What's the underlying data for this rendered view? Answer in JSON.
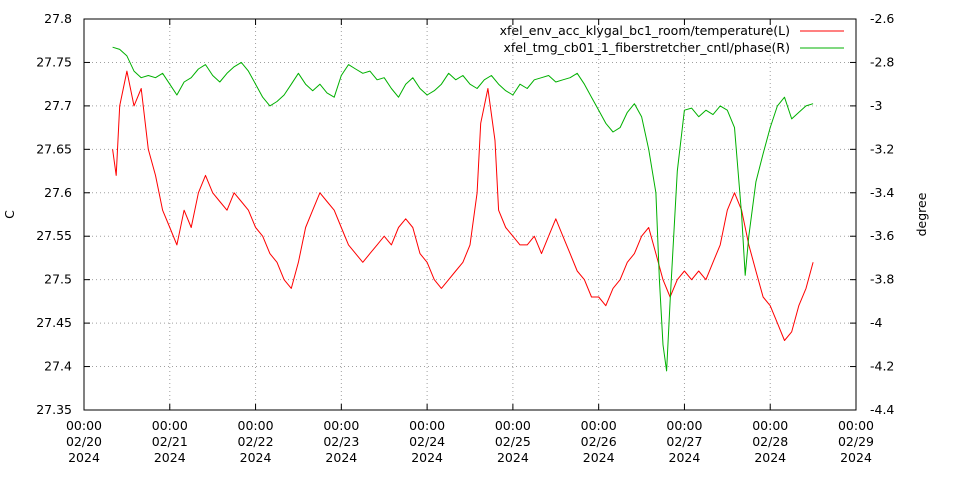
{
  "chart_data": {
    "type": "line",
    "title": "",
    "ylabel_left": "C",
    "ylabel_right": "degree",
    "grid": true,
    "legend_placement": "top-right",
    "x_ticks": [
      {
        "time": "00:00",
        "date": "02/20",
        "year": "2024"
      },
      {
        "time": "00:00",
        "date": "02/21",
        "year": "2024"
      },
      {
        "time": "00:00",
        "date": "02/22",
        "year": "2024"
      },
      {
        "time": "00:00",
        "date": "02/23",
        "year": "2024"
      },
      {
        "time": "00:00",
        "date": "02/24",
        "year": "2024"
      },
      {
        "time": "00:00",
        "date": "02/25",
        "year": "2024"
      },
      {
        "time": "00:00",
        "date": "02/26",
        "year": "2024"
      },
      {
        "time": "00:00",
        "date": "02/27",
        "year": "2024"
      },
      {
        "time": "00:00",
        "date": "02/28",
        "year": "2024"
      },
      {
        "time": "00:00",
        "date": "02/29",
        "year": "2024"
      }
    ],
    "xlim": [
      "2024-02-20 00:00",
      "2024-02-29 00:00"
    ],
    "y_left": {
      "lim": [
        27.35,
        27.8
      ],
      "ticks": [
        "27.35",
        "27.4",
        "27.45",
        "27.5",
        "27.55",
        "27.6",
        "27.65",
        "27.7",
        "27.75",
        "27.8"
      ]
    },
    "y_right": {
      "lim": [
        -4.4,
        -2.6
      ],
      "ticks": [
        "-4.4",
        "-4.2",
        "-4",
        "-3.8",
        "-3.6",
        "-3.4",
        "-3.2",
        "-3",
        "-2.8",
        "-2.6"
      ]
    },
    "series": [
      {
        "name": "xfel_env_acc_klygal_bc1_room/temperature(L)",
        "axis": "left",
        "color": "#ff0000",
        "points": [
          [
            "2024-02-20 08:00",
            27.65
          ],
          [
            "2024-02-20 09:00",
            27.62
          ],
          [
            "2024-02-20 10:00",
            27.7
          ],
          [
            "2024-02-20 12:00",
            27.74
          ],
          [
            "2024-02-20 14:00",
            27.7
          ],
          [
            "2024-02-20 16:00",
            27.72
          ],
          [
            "2024-02-20 18:00",
            27.65
          ],
          [
            "2024-02-20 20:00",
            27.62
          ],
          [
            "2024-02-20 22:00",
            27.58
          ],
          [
            "2024-02-21 00:00",
            27.56
          ],
          [
            "2024-02-21 02:00",
            27.54
          ],
          [
            "2024-02-21 04:00",
            27.58
          ],
          [
            "2024-02-21 06:00",
            27.56
          ],
          [
            "2024-02-21 08:00",
            27.6
          ],
          [
            "2024-02-21 10:00",
            27.62
          ],
          [
            "2024-02-21 12:00",
            27.6
          ],
          [
            "2024-02-21 14:00",
            27.59
          ],
          [
            "2024-02-21 16:00",
            27.58
          ],
          [
            "2024-02-21 18:00",
            27.6
          ],
          [
            "2024-02-21 20:00",
            27.59
          ],
          [
            "2024-02-21 22:00",
            27.58
          ],
          [
            "2024-02-22 00:00",
            27.56
          ],
          [
            "2024-02-22 02:00",
            27.55
          ],
          [
            "2024-02-22 04:00",
            27.53
          ],
          [
            "2024-02-22 06:00",
            27.52
          ],
          [
            "2024-02-22 08:00",
            27.5
          ],
          [
            "2024-02-22 10:00",
            27.49
          ],
          [
            "2024-02-22 12:00",
            27.52
          ],
          [
            "2024-02-22 14:00",
            27.56
          ],
          [
            "2024-02-22 16:00",
            27.58
          ],
          [
            "2024-02-22 18:00",
            27.6
          ],
          [
            "2024-02-22 20:00",
            27.59
          ],
          [
            "2024-02-22 22:00",
            27.58
          ],
          [
            "2024-02-23 00:00",
            27.56
          ],
          [
            "2024-02-23 02:00",
            27.54
          ],
          [
            "2024-02-23 04:00",
            27.53
          ],
          [
            "2024-02-23 06:00",
            27.52
          ],
          [
            "2024-02-23 08:00",
            27.53
          ],
          [
            "2024-02-23 10:00",
            27.54
          ],
          [
            "2024-02-23 12:00",
            27.55
          ],
          [
            "2024-02-23 14:00",
            27.54
          ],
          [
            "2024-02-23 16:00",
            27.56
          ],
          [
            "2024-02-23 18:00",
            27.57
          ],
          [
            "2024-02-23 20:00",
            27.56
          ],
          [
            "2024-02-23 22:00",
            27.53
          ],
          [
            "2024-02-24 00:00",
            27.52
          ],
          [
            "2024-02-24 02:00",
            27.5
          ],
          [
            "2024-02-24 04:00",
            27.49
          ],
          [
            "2024-02-24 06:00",
            27.5
          ],
          [
            "2024-02-24 08:00",
            27.51
          ],
          [
            "2024-02-24 10:00",
            27.52
          ],
          [
            "2024-02-24 12:00",
            27.54
          ],
          [
            "2024-02-24 14:00",
            27.6
          ],
          [
            "2024-02-24 15:00",
            27.68
          ],
          [
            "2024-02-24 17:00",
            27.72
          ],
          [
            "2024-02-24 19:00",
            27.66
          ],
          [
            "2024-02-24 20:00",
            27.58
          ],
          [
            "2024-02-24 22:00",
            27.56
          ],
          [
            "2024-02-25 00:00",
            27.55
          ],
          [
            "2024-02-25 02:00",
            27.54
          ],
          [
            "2024-02-25 04:00",
            27.54
          ],
          [
            "2024-02-25 06:00",
            27.55
          ],
          [
            "2024-02-25 08:00",
            27.53
          ],
          [
            "2024-02-25 10:00",
            27.55
          ],
          [
            "2024-02-25 12:00",
            27.57
          ],
          [
            "2024-02-25 14:00",
            27.55
          ],
          [
            "2024-02-25 16:00",
            27.53
          ],
          [
            "2024-02-25 18:00",
            27.51
          ],
          [
            "2024-02-25 20:00",
            27.5
          ],
          [
            "2024-02-25 22:00",
            27.48
          ],
          [
            "2024-02-26 00:00",
            27.48
          ],
          [
            "2024-02-26 02:00",
            27.47
          ],
          [
            "2024-02-26 04:00",
            27.49
          ],
          [
            "2024-02-26 06:00",
            27.5
          ],
          [
            "2024-02-26 08:00",
            27.52
          ],
          [
            "2024-02-26 10:00",
            27.53
          ],
          [
            "2024-02-26 12:00",
            27.55
          ],
          [
            "2024-02-26 14:00",
            27.56
          ],
          [
            "2024-02-26 16:00",
            27.53
          ],
          [
            "2024-02-26 18:00",
            27.5
          ],
          [
            "2024-02-26 20:00",
            27.48
          ],
          [
            "2024-02-26 22:00",
            27.5
          ],
          [
            "2024-02-27 00:00",
            27.51
          ],
          [
            "2024-02-27 02:00",
            27.5
          ],
          [
            "2024-02-27 04:00",
            27.51
          ],
          [
            "2024-02-27 06:00",
            27.5
          ],
          [
            "2024-02-27 08:00",
            27.52
          ],
          [
            "2024-02-27 10:00",
            27.54
          ],
          [
            "2024-02-27 12:00",
            27.58
          ],
          [
            "2024-02-27 14:00",
            27.6
          ],
          [
            "2024-02-27 16:00",
            27.58
          ],
          [
            "2024-02-27 18:00",
            27.54
          ],
          [
            "2024-02-27 20:00",
            27.51
          ],
          [
            "2024-02-27 22:00",
            27.48
          ],
          [
            "2024-02-28 00:00",
            27.47
          ],
          [
            "2024-02-28 02:00",
            27.45
          ],
          [
            "2024-02-28 04:00",
            27.43
          ],
          [
            "2024-02-28 06:00",
            27.44
          ],
          [
            "2024-02-28 08:00",
            27.47
          ],
          [
            "2024-02-28 10:00",
            27.49
          ],
          [
            "2024-02-28 12:00",
            27.52
          ]
        ]
      },
      {
        "name": "xfel_tmg_cb01_1_fiberstretcher_cntl/phase(R)",
        "axis": "right",
        "color": "#00b000",
        "points": [
          [
            "2024-02-20 08:00",
            -2.73
          ],
          [
            "2024-02-20 10:00",
            -2.74
          ],
          [
            "2024-02-20 12:00",
            -2.77
          ],
          [
            "2024-02-20 14:00",
            -2.84
          ],
          [
            "2024-02-20 16:00",
            -2.87
          ],
          [
            "2024-02-20 18:00",
            -2.86
          ],
          [
            "2024-02-20 20:00",
            -2.87
          ],
          [
            "2024-02-20 22:00",
            -2.85
          ],
          [
            "2024-02-21 00:00",
            -2.9
          ],
          [
            "2024-02-21 02:00",
            -2.95
          ],
          [
            "2024-02-21 04:00",
            -2.89
          ],
          [
            "2024-02-21 06:00",
            -2.87
          ],
          [
            "2024-02-21 08:00",
            -2.83
          ],
          [
            "2024-02-21 10:00",
            -2.81
          ],
          [
            "2024-02-21 12:00",
            -2.86
          ],
          [
            "2024-02-21 14:00",
            -2.89
          ],
          [
            "2024-02-21 16:00",
            -2.85
          ],
          [
            "2024-02-21 18:00",
            -2.82
          ],
          [
            "2024-02-21 20:00",
            -2.8
          ],
          [
            "2024-02-21 22:00",
            -2.84
          ],
          [
            "2024-02-22 00:00",
            -2.9
          ],
          [
            "2024-02-22 02:00",
            -2.96
          ],
          [
            "2024-02-22 04:00",
            -3.0
          ],
          [
            "2024-02-22 06:00",
            -2.98
          ],
          [
            "2024-02-22 08:00",
            -2.95
          ],
          [
            "2024-02-22 10:00",
            -2.9
          ],
          [
            "2024-02-22 12:00",
            -2.85
          ],
          [
            "2024-02-22 14:00",
            -2.9
          ],
          [
            "2024-02-22 16:00",
            -2.93
          ],
          [
            "2024-02-22 18:00",
            -2.9
          ],
          [
            "2024-02-22 20:00",
            -2.94
          ],
          [
            "2024-02-22 22:00",
            -2.96
          ],
          [
            "2024-02-23 00:00",
            -2.86
          ],
          [
            "2024-02-23 02:00",
            -2.81
          ],
          [
            "2024-02-23 04:00",
            -2.83
          ],
          [
            "2024-02-23 06:00",
            -2.85
          ],
          [
            "2024-02-23 08:00",
            -2.84
          ],
          [
            "2024-02-23 10:00",
            -2.88
          ],
          [
            "2024-02-23 12:00",
            -2.87
          ],
          [
            "2024-02-23 14:00",
            -2.92
          ],
          [
            "2024-02-23 16:00",
            -2.96
          ],
          [
            "2024-02-23 18:00",
            -2.9
          ],
          [
            "2024-02-23 20:00",
            -2.87
          ],
          [
            "2024-02-23 22:00",
            -2.92
          ],
          [
            "2024-02-24 00:00",
            -2.95
          ],
          [
            "2024-02-24 02:00",
            -2.93
          ],
          [
            "2024-02-24 04:00",
            -2.9
          ],
          [
            "2024-02-24 06:00",
            -2.85
          ],
          [
            "2024-02-24 08:00",
            -2.88
          ],
          [
            "2024-02-24 10:00",
            -2.86
          ],
          [
            "2024-02-24 12:00",
            -2.9
          ],
          [
            "2024-02-24 14:00",
            -2.92
          ],
          [
            "2024-02-24 16:00",
            -2.88
          ],
          [
            "2024-02-24 18:00",
            -2.86
          ],
          [
            "2024-02-24 20:00",
            -2.9
          ],
          [
            "2024-02-24 22:00",
            -2.93
          ],
          [
            "2024-02-25 00:00",
            -2.95
          ],
          [
            "2024-02-25 02:00",
            -2.9
          ],
          [
            "2024-02-25 04:00",
            -2.92
          ],
          [
            "2024-02-25 06:00",
            -2.88
          ],
          [
            "2024-02-25 08:00",
            -2.87
          ],
          [
            "2024-02-25 10:00",
            -2.86
          ],
          [
            "2024-02-25 12:00",
            -2.89
          ],
          [
            "2024-02-25 14:00",
            -2.88
          ],
          [
            "2024-02-25 16:00",
            -2.87
          ],
          [
            "2024-02-25 18:00",
            -2.85
          ],
          [
            "2024-02-25 20:00",
            -2.9
          ],
          [
            "2024-02-25 22:00",
            -2.96
          ],
          [
            "2024-02-26 00:00",
            -3.02
          ],
          [
            "2024-02-26 02:00",
            -3.08
          ],
          [
            "2024-02-26 04:00",
            -3.12
          ],
          [
            "2024-02-26 06:00",
            -3.1
          ],
          [
            "2024-02-26 08:00",
            -3.03
          ],
          [
            "2024-02-26 10:00",
            -2.99
          ],
          [
            "2024-02-26 12:00",
            -3.05
          ],
          [
            "2024-02-26 14:00",
            -3.2
          ],
          [
            "2024-02-26 16:00",
            -3.4
          ],
          [
            "2024-02-26 17:00",
            -3.8
          ],
          [
            "2024-02-26 18:00",
            -4.1
          ],
          [
            "2024-02-26 19:00",
            -4.22
          ],
          [
            "2024-02-26 20:00",
            -3.9
          ],
          [
            "2024-02-26 22:00",
            -3.3
          ],
          [
            "2024-02-27 00:00",
            -3.02
          ],
          [
            "2024-02-27 02:00",
            -3.01
          ],
          [
            "2024-02-27 04:00",
            -3.05
          ],
          [
            "2024-02-27 06:00",
            -3.02
          ],
          [
            "2024-02-27 08:00",
            -3.04
          ],
          [
            "2024-02-27 10:00",
            -3.0
          ],
          [
            "2024-02-27 12:00",
            -3.02
          ],
          [
            "2024-02-27 14:00",
            -3.1
          ],
          [
            "2024-02-27 16:00",
            -3.5
          ],
          [
            "2024-02-27 17:00",
            -3.78
          ],
          [
            "2024-02-27 18:00",
            -3.6
          ],
          [
            "2024-02-27 20:00",
            -3.35
          ],
          [
            "2024-02-27 22:00",
            -3.22
          ],
          [
            "2024-02-28 00:00",
            -3.1
          ],
          [
            "2024-02-28 02:00",
            -3.0
          ],
          [
            "2024-02-28 04:00",
            -2.96
          ],
          [
            "2024-02-28 06:00",
            -3.06
          ],
          [
            "2024-02-28 08:00",
            -3.03
          ],
          [
            "2024-02-28 10:00",
            -3.0
          ],
          [
            "2024-02-28 12:00",
            -2.99
          ]
        ]
      }
    ]
  }
}
